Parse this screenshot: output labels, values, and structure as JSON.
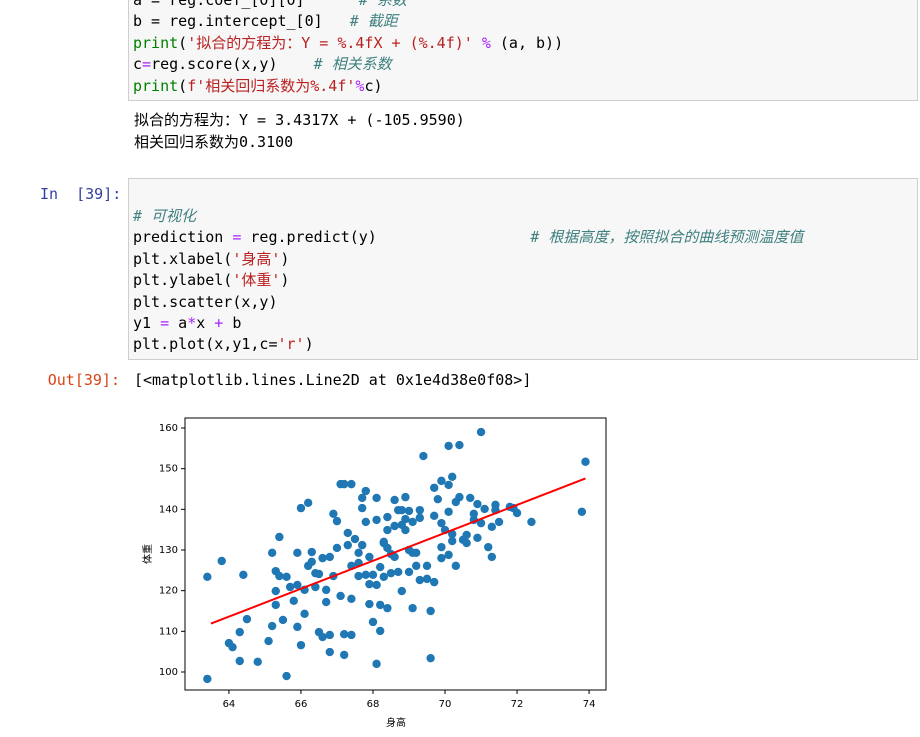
{
  "cells": [
    {
      "code": [
        [
          {
            "text": "a = reg.coef_[0][0]      "
          },
          {
            "text": "# 系数",
            "color": "#408080"
          }
        ],
        [
          {
            "text": "b = reg.intercept_[0]   "
          },
          {
            "text": "# 截距",
            "color": "#408080"
          }
        ],
        [
          {
            "text": "print",
            "color": "#008000"
          },
          {
            "text": "("
          },
          {
            "text": "'拟合的方程为：Y = %.4fX + (%.4f)'",
            "color": "#ba2121"
          },
          {
            "text": " % ",
            "color": "#aa22ff"
          },
          {
            "text": "(a, b))"
          }
        ],
        [
          {
            "text": "c"
          },
          {
            "text": "=",
            "color": "#aa22ff"
          },
          {
            "text": "reg.score(x,y)    "
          },
          {
            "text": "# 相关系数",
            "color": "#408080"
          }
        ],
        [
          {
            "text": "print",
            "color": "#008000"
          },
          {
            "text": "("
          },
          {
            "text": "f'相关回归系数为%.4f'",
            "color": "#ba2121"
          },
          {
            "text": "%",
            "color": "#aa22ff"
          },
          {
            "text": "c)"
          }
        ]
      ],
      "output": [
        "拟合的方程为：Y = 3.4317X + (-105.9590)",
        "相关回归系数为0.3100"
      ]
    },
    {
      "prompt": "In  [39]:",
      "code": [
        [
          {
            "text": "# 可视化",
            "color": "#408080"
          }
        ],
        [
          {
            "text": "prediction "
          },
          {
            "text": "=",
            "color": "#aa22ff"
          },
          {
            "text": " reg.predict(y)                 "
          },
          {
            "text": "# 根据高度，按照拟合的曲线预测温度值",
            "color": "#408080"
          }
        ],
        [
          {
            "text": "plt.xlabel("
          },
          {
            "text": "'身高'",
            "color": "#ba2121"
          },
          {
            "text": ")"
          }
        ],
        [
          {
            "text": "plt.ylabel("
          },
          {
            "text": "'体重'",
            "color": "#ba2121"
          },
          {
            "text": ")"
          }
        ],
        [
          {
            "text": "plt.scatter(x,y)"
          }
        ],
        [
          {
            "text": "y1 "
          },
          {
            "text": "=",
            "color": "#aa22ff"
          },
          {
            "text": " a"
          },
          {
            "text": "*",
            "color": "#aa22ff"
          },
          {
            "text": "x "
          },
          {
            "text": "+",
            "color": "#aa22ff"
          },
          {
            "text": " b"
          }
        ],
        [
          {
            "text": "plt.plot(x,y1,c="
          },
          {
            "text": "'r'",
            "color": "#ba2121"
          },
          {
            "text": ")"
          }
        ]
      ],
      "out_prompt": "Out[39]:",
      "output": [
        "[<matplotlib.lines.Line2D at 0x1e4d38e0f08>]"
      ]
    }
  ],
  "chart_data": {
    "type": "scatter",
    "xlabel": "身高",
    "ylabel": "体重",
    "xlim": [
      62.78,
      74.47
    ],
    "ylim": [
      95.57,
      162.46
    ],
    "xticks": [
      64,
      66,
      68,
      70,
      72,
      74
    ],
    "yticks": [
      100,
      110,
      120,
      130,
      140,
      150,
      160
    ],
    "series": [
      {
        "type": "scatter",
        "color": "#1f77b4",
        "x": [
          63.4,
          63.4,
          63.8,
          64.0,
          64.1,
          64.3,
          64.4,
          64.3,
          64.5,
          64.8,
          65.1,
          65.2,
          65.2,
          65.3,
          65.3,
          65.3,
          65.4,
          65.4,
          65.5,
          65.6,
          65.6,
          65.7,
          65.8,
          65.9,
          65.9,
          65.9,
          66.0,
          66.0,
          66.1,
          66.1,
          66.2,
          66.2,
          66.3,
          66.3,
          66.4,
          66.4,
          66.5,
          66.5,
          66.6,
          66.6,
          66.7,
          66.7,
          66.8,
          66.8,
          66.8,
          66.9,
          66.9,
          67.0,
          67.0,
          67.1,
          67.1,
          67.2,
          67.2,
          67.2,
          67.3,
          67.3,
          67.4,
          67.4,
          67.4,
          67.4,
          67.5,
          67.6,
          67.6,
          67.6,
          67.7,
          67.7,
          67.7,
          67.8,
          67.8,
          67.8,
          67.9,
          67.9,
          67.9,
          68.0,
          68.0,
          68.1,
          68.1,
          68.1,
          68.1,
          68.2,
          68.2,
          68.2,
          68.3,
          68.3,
          68.3,
          68.4,
          68.4,
          68.4,
          68.4,
          68.5,
          68.5,
          68.6,
          68.6,
          68.6,
          68.7,
          68.7,
          68.8,
          68.8,
          68.8,
          68.9,
          68.9,
          68.9,
          69.0,
          69.0,
          69.0,
          69.1,
          69.1,
          69.1,
          69.2,
          69.2,
          69.3,
          69.3,
          69.3,
          69.4,
          69.5,
          69.5,
          69.6,
          69.6,
          69.7,
          69.7,
          69.7,
          69.8,
          69.9,
          69.9,
          69.9,
          69.9,
          70.0,
          70.1,
          70.1,
          70.1,
          70.1,
          70.2,
          70.2,
          70.2,
          70.3,
          70.3,
          70.4,
          70.4,
          70.5,
          70.6,
          70.6,
          70.7,
          70.8,
          70.8,
          70.9,
          70.9,
          71.0,
          71.0,
          71.1,
          71.2,
          71.3,
          71.3,
          71.4,
          71.4,
          71.5,
          71.8,
          71.9,
          72.0,
          72.4,
          73.8,
          73.9
        ],
        "values": [
          123.4,
          98.3,
          127.3,
          107.1,
          106.1,
          102.7,
          123.9,
          109.8,
          113.0,
          102.5,
          107.6,
          111.3,
          129.3,
          124.8,
          119.9,
          116.5,
          133.2,
          123.6,
          112.8,
          99.0,
          123.4,
          120.9,
          117.5,
          111.1,
          129.3,
          121.4,
          140.3,
          106.6,
          114.3,
          120.2,
          141.6,
          126.1,
          127.1,
          129.5,
          124.3,
          120.9,
          124.1,
          109.8,
          108.6,
          128.0,
          117.2,
          120.2,
          104.9,
          109.1,
          128.3,
          123.6,
          138.9,
          130.5,
          137.1,
          146.2,
          118.7,
          109.3,
          146.2,
          104.2,
          131.2,
          134.2,
          126.1,
          146.2,
          118.0,
          109.1,
          132.7,
          123.6,
          126.8,
          129.3,
          142.8,
          140.3,
          131.2,
          144.5,
          123.9,
          136.9,
          128.3,
          116.7,
          121.6,
          112.3,
          123.9,
          102.0,
          137.4,
          121.4,
          142.8,
          125.8,
          116.5,
          110.1,
          132.0,
          123.4,
          131.7,
          115.7,
          134.9,
          138.1,
          130.5,
          124.3,
          129.0,
          135.9,
          142.3,
          128.3,
          139.8,
          124.6,
          139.8,
          119.9,
          136.2,
          137.6,
          143.0,
          134.9,
          124.6,
          130.0,
          139.6,
          115.7,
          129.3,
          136.9,
          129.3,
          126.1,
          137.9,
          122.6,
          139.8,
          153.1,
          122.9,
          126.1,
          103.4,
          115.0,
          145.3,
          138.4,
          122.1,
          142.5,
          147.0,
          128.0,
          136.6,
          130.7,
          134.9,
          155.6,
          139.4,
          128.8,
          146.0,
          132.2,
          148.0,
          133.9,
          126.1,
          141.8,
          155.8,
          143.0,
          132.5,
          133.7,
          131.7,
          142.8,
          137.4,
          138.9,
          133.0,
          141.3,
          159.0,
          136.6,
          140.1,
          130.7,
          135.7,
          128.3,
          139.8,
          141.1,
          136.9,
          140.6,
          140.3,
          139.1,
          136.9,
          139.4,
          151.7
        ]
      },
      {
        "type": "line",
        "color": "#ff0000",
        "x": [
          63.5,
          73.9
        ],
        "values": [
          111.9,
          147.6
        ]
      }
    ]
  }
}
